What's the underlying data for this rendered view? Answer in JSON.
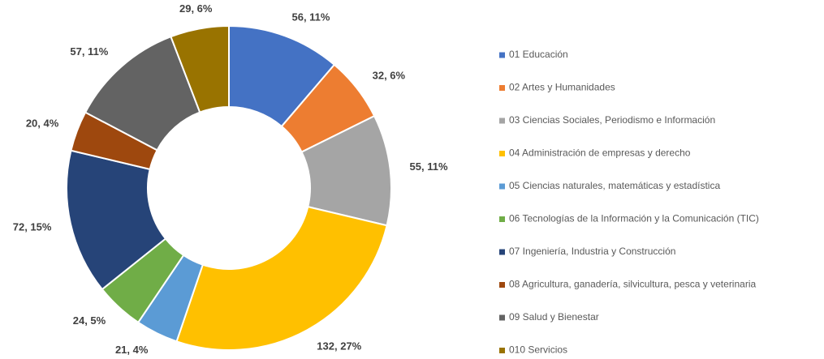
{
  "chart_data": {
    "type": "donut",
    "categories": [
      "01 Educación",
      "02 Artes y Humanidades",
      "03 Ciencias Sociales, Periodismo e Información",
      "04 Administración de empresas y derecho",
      "05 Ciencias naturales, matemáticas y estadística",
      "06 Tecnologías de la Información y la Comunicación (TIC)",
      "07 Ingeniería, Industria y Construcción",
      "08 Agricultura, ganadería, silvicultura, pesca y veterinaria",
      "09 Salud y Bienestar",
      "010 Servicios"
    ],
    "values": [
      56,
      32,
      55,
      132,
      21,
      24,
      72,
      20,
      57,
      29
    ],
    "value_labels": [
      "56, 11%",
      "32, 6%",
      "55, 11%",
      "132, 27%",
      "21, 4%",
      "24, 5%",
      "72, 15%",
      "20, 4%",
      "57, 11%",
      "29, 6%"
    ],
    "colors": [
      "#4472c4",
      "#ed7d31",
      "#a5a5a5",
      "#ffc000",
      "#5b9bd5",
      "#70ad47",
      "#264478",
      "#9e480e",
      "#636363",
      "#997300"
    ],
    "legend": "right"
  }
}
